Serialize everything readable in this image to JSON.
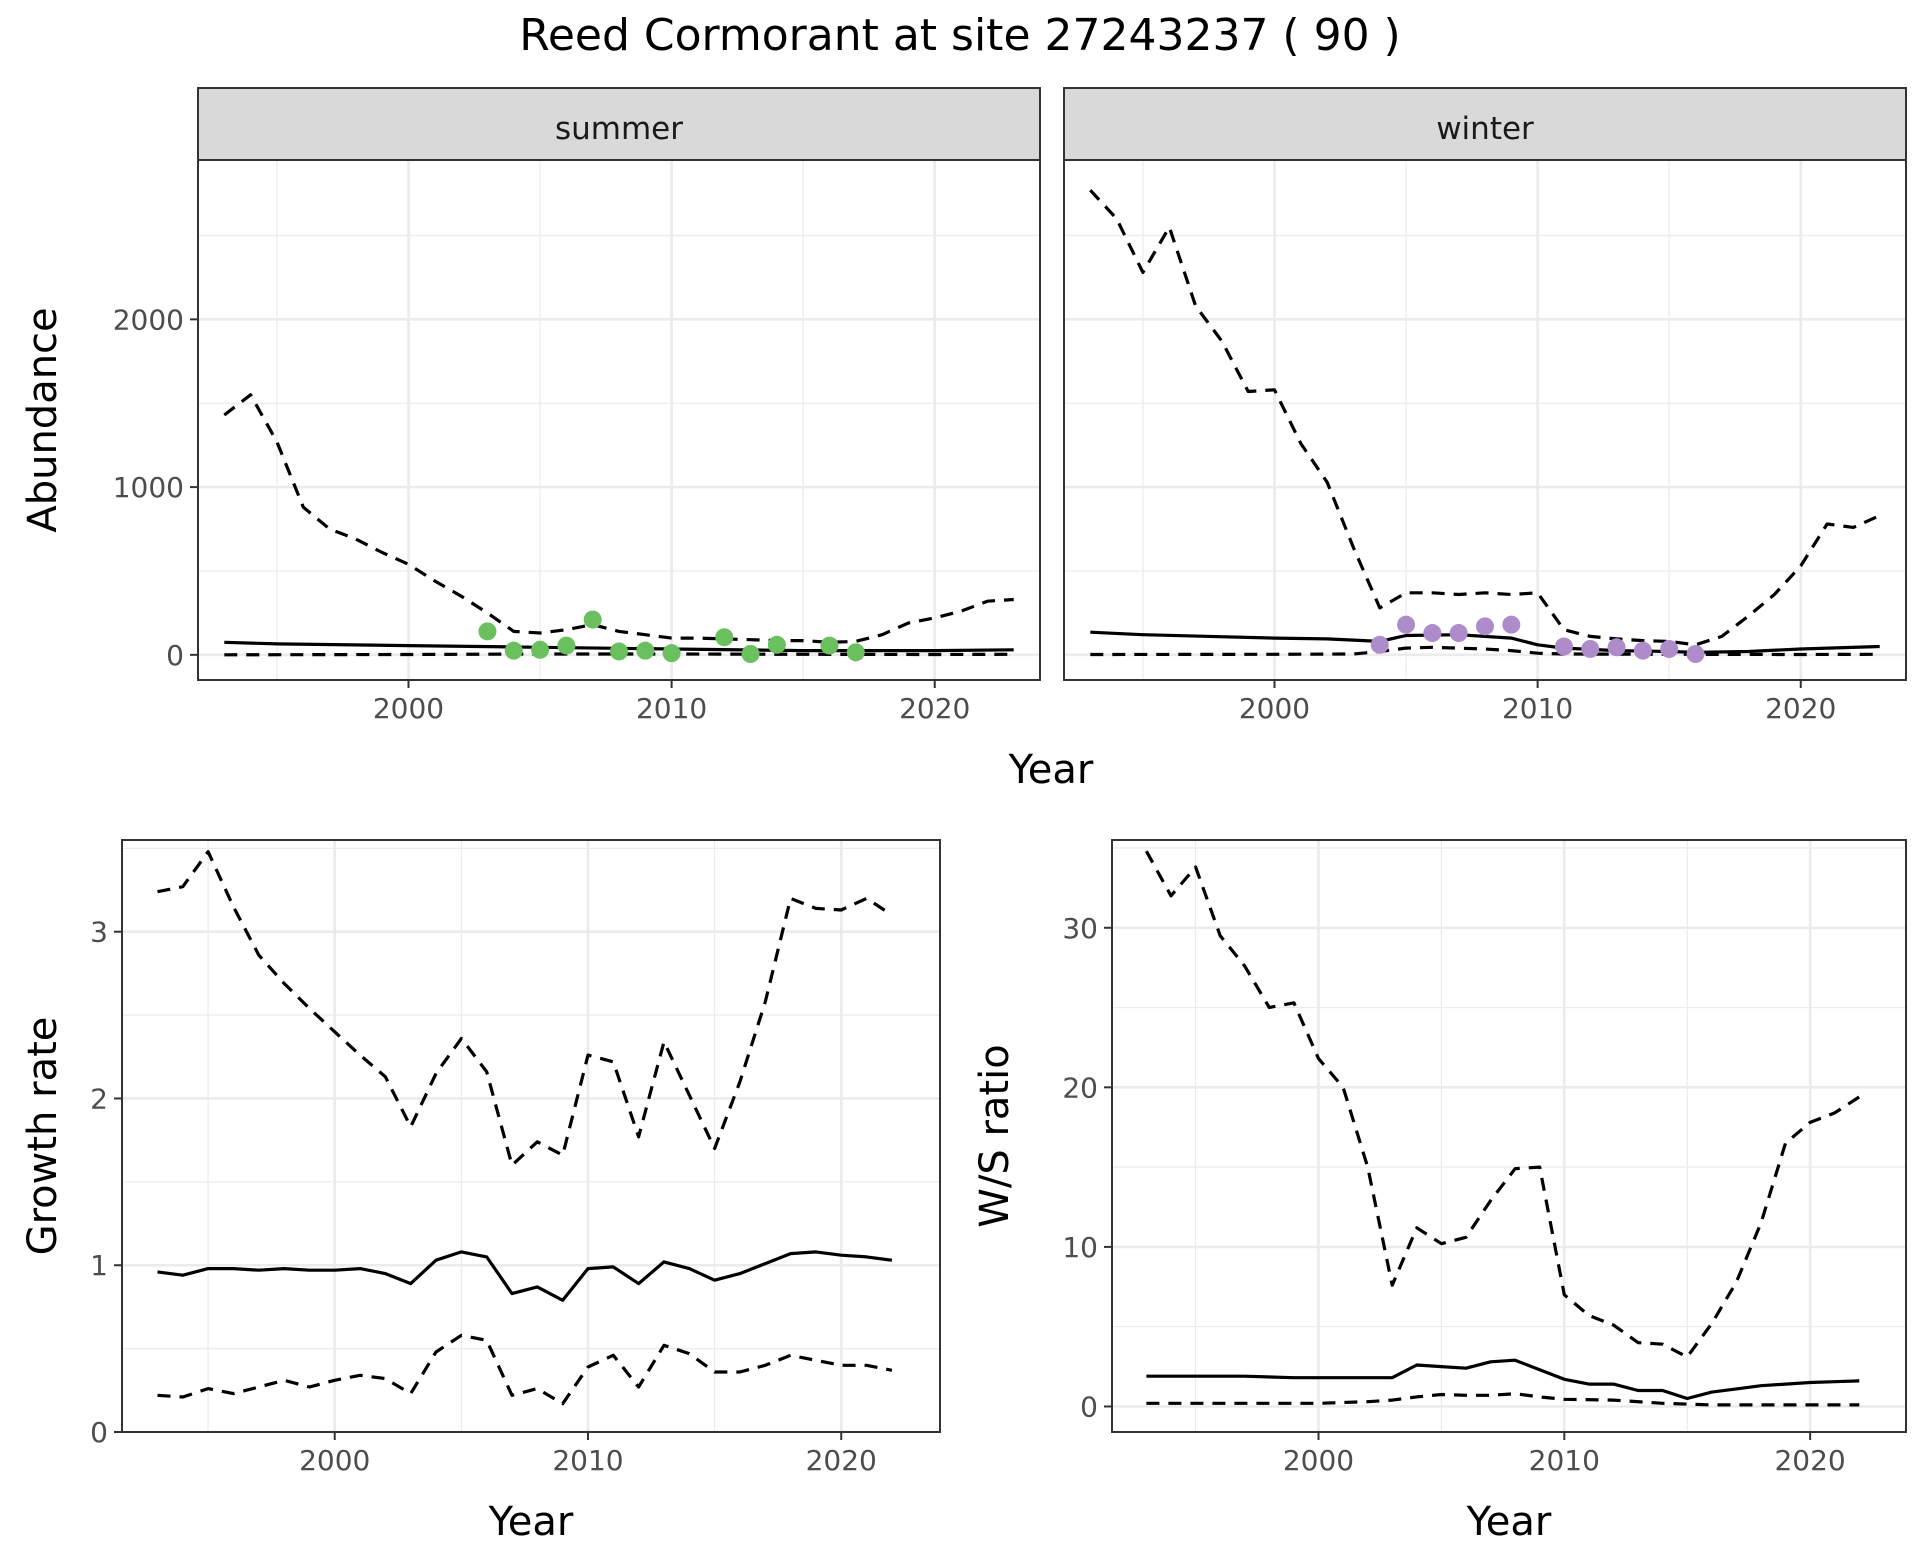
{
  "title": "Reed Cormorant at site 27243237 ( 90 )",
  "colors": {
    "summer_points": "#6abf5e",
    "winter_points": "#ae8cca",
    "line": "#000000",
    "strip_bg": "#d9d9d9",
    "grid": "#ebebeb"
  },
  "chart_data": [
    {
      "type": "line",
      "panel": "summer",
      "strip": "summer",
      "xlabel": "Year",
      "ylabel": "Abundance",
      "xlim": [
        1992,
        2024
      ],
      "ylim": [
        -150,
        2950
      ],
      "xticks": [
        2000,
        2010,
        2020
      ],
      "yticks": [
        0,
        1000,
        2000
      ],
      "grid": true,
      "series": [
        {
          "role": "estimate",
          "style": "solid",
          "x": [
            1993,
            1995,
            2000,
            2005,
            2010,
            2015,
            2020,
            2023
          ],
          "y": [
            75,
            65,
            55,
            45,
            35,
            25,
            25,
            30
          ]
        },
        {
          "role": "upper",
          "style": "dashed",
          "x": [
            1993,
            1994,
            1995,
            1996,
            1997,
            1998,
            1999,
            2000,
            2001,
            2002,
            2003,
            2004,
            2005,
            2006,
            2007,
            2008,
            2009,
            2010,
            2011,
            2012,
            2013,
            2014,
            2015,
            2016,
            2017,
            2018,
            2019,
            2020,
            2021,
            2022,
            2023
          ],
          "y": [
            1430,
            1550,
            1270,
            880,
            750,
            690,
            610,
            540,
            440,
            350,
            250,
            140,
            130,
            150,
            180,
            140,
            120,
            100,
            100,
            95,
            90,
            85,
            85,
            75,
            80,
            120,
            190,
            220,
            260,
            320,
            330
          ]
        },
        {
          "role": "lower",
          "style": "dashed",
          "x": [
            1993,
            2000,
            2005,
            2010,
            2015,
            2020,
            2023
          ],
          "y": [
            0,
            2,
            5,
            5,
            3,
            2,
            3
          ]
        },
        {
          "role": "observed",
          "style": "points",
          "x": [
            2003,
            2004,
            2005,
            2006,
            2007,
            2008,
            2009,
            2010,
            2012,
            2013,
            2014,
            2016,
            2017
          ],
          "y": [
            140,
            25,
            30,
            55,
            210,
            20,
            25,
            10,
            105,
            5,
            60,
            55,
            15
          ]
        }
      ]
    },
    {
      "type": "line",
      "panel": "winter",
      "strip": "winter",
      "xlabel": "Year",
      "ylabel": "Abundance",
      "xlim": [
        1992,
        2024
      ],
      "ylim": [
        -150,
        2950
      ],
      "xticks": [
        2000,
        2010,
        2020
      ],
      "yticks": [
        0,
        1000,
        2000
      ],
      "grid": true,
      "series": [
        {
          "role": "estimate",
          "style": "solid",
          "x": [
            1993,
            1995,
            2000,
            2002,
            2004,
            2005,
            2007,
            2009,
            2010,
            2011,
            2013,
            2015,
            2016,
            2018,
            2020,
            2023
          ],
          "y": [
            135,
            120,
            100,
            95,
            80,
            115,
            120,
            100,
            60,
            40,
            25,
            20,
            15,
            20,
            35,
            50
          ]
        },
        {
          "role": "upper",
          "style": "dashed",
          "x": [
            1993,
            1994,
            1995,
            1996,
            1997,
            1998,
            1999,
            2000,
            2001,
            2002,
            2003,
            2004,
            2005,
            2006,
            2007,
            2008,
            2009,
            2010,
            2011,
            2012,
            2013,
            2014,
            2015,
            2016,
            2017,
            2018,
            2019,
            2020,
            2021,
            2022,
            2023
          ],
          "y": [
            2770,
            2600,
            2280,
            2550,
            2080,
            1870,
            1570,
            1580,
            1260,
            1030,
            640,
            280,
            370,
            370,
            360,
            370,
            360,
            370,
            150,
            110,
            95,
            85,
            80,
            60,
            110,
            230,
            360,
            530,
            780,
            760,
            830
          ]
        },
        {
          "role": "lower",
          "style": "dashed",
          "x": [
            1993,
            2000,
            2003,
            2004,
            2005,
            2006,
            2008,
            2009,
            2010,
            2011,
            2015,
            2020,
            2023
          ],
          "y": [
            2,
            3,
            5,
            20,
            40,
            45,
            35,
            25,
            10,
            5,
            3,
            2,
            3
          ]
        },
        {
          "role": "observed",
          "style": "points",
          "x": [
            2004,
            2005,
            2006,
            2007,
            2008,
            2009,
            2011,
            2012,
            2013,
            2014,
            2015,
            2016
          ],
          "y": [
            60,
            180,
            130,
            130,
            170,
            180,
            50,
            35,
            45,
            25,
            35,
            5
          ]
        }
      ]
    },
    {
      "type": "line",
      "panel": "growth",
      "xlabel": "Year",
      "ylabel": "Growth rate",
      "xlim": [
        1991.6,
        2023.9
      ],
      "ylim": [
        0,
        3.55
      ],
      "xticks": [
        2000,
        2010,
        2020
      ],
      "yticks": [
        0,
        1,
        2,
        3
      ],
      "grid": true,
      "series": [
        {
          "role": "estimate",
          "style": "solid",
          "x": [
            1993,
            1994,
            1995,
            1996,
            1997,
            1998,
            1999,
            2000,
            2001,
            2002,
            2003,
            2004,
            2005,
            2006,
            2007,
            2008,
            2009,
            2010,
            2011,
            2012,
            2013,
            2014,
            2015,
            2016,
            2017,
            2018,
            2019,
            2020,
            2021,
            2022
          ],
          "y": [
            0.96,
            0.94,
            0.98,
            0.98,
            0.97,
            0.98,
            0.97,
            0.97,
            0.98,
            0.95,
            0.89,
            1.03,
            1.08,
            1.05,
            0.83,
            0.87,
            0.79,
            0.98,
            0.99,
            0.89,
            1.02,
            0.98,
            0.91,
            0.95,
            1.01,
            1.07,
            1.08,
            1.06,
            1.05,
            1.03
          ]
        },
        {
          "role": "upper",
          "style": "dashed",
          "x": [
            1993,
            1994,
            1995,
            1996,
            1997,
            1998,
            1999,
            2000,
            2001,
            2002,
            2003,
            2004,
            2005,
            2006,
            2007,
            2008,
            2009,
            2010,
            2011,
            2012,
            2013,
            2014,
            2015,
            2016,
            2017,
            2018,
            2019,
            2020,
            2021,
            2022
          ],
          "y": [
            3.24,
            3.27,
            3.48,
            3.15,
            2.86,
            2.69,
            2.54,
            2.4,
            2.26,
            2.13,
            1.83,
            2.15,
            2.36,
            2.16,
            1.6,
            1.74,
            1.66,
            2.26,
            2.22,
            1.77,
            2.34,
            2.02,
            1.7,
            2.1,
            2.58,
            3.2,
            3.14,
            3.13,
            3.2,
            3.1
          ]
        },
        {
          "role": "lower",
          "style": "dashed",
          "x": [
            1993,
            1994,
            1995,
            1996,
            1997,
            1998,
            1999,
            2000,
            2001,
            2002,
            2003,
            2004,
            2005,
            2006,
            2007,
            2008,
            2009,
            2010,
            2011,
            2012,
            2013,
            2014,
            2015,
            2016,
            2017,
            2018,
            2019,
            2020,
            2021,
            2022
          ],
          "y": [
            0.22,
            0.21,
            0.26,
            0.23,
            0.27,
            0.31,
            0.27,
            0.31,
            0.34,
            0.32,
            0.23,
            0.48,
            0.58,
            0.55,
            0.22,
            0.26,
            0.17,
            0.39,
            0.46,
            0.27,
            0.52,
            0.47,
            0.36,
            0.36,
            0.4,
            0.46,
            0.43,
            0.4,
            0.4,
            0.37
          ]
        }
      ]
    },
    {
      "type": "line",
      "panel": "ratio",
      "xlabel": "Year",
      "ylabel": "W/S ratio",
      "xlim": [
        1991.6,
        2023.9
      ],
      "ylim": [
        -1.6,
        35.5
      ],
      "xticks": [
        2000,
        2010,
        2020
      ],
      "yticks": [
        0,
        10,
        20,
        30
      ],
      "grid": true,
      "series": [
        {
          "role": "estimate",
          "style": "solid",
          "x": [
            1993,
            1995,
            1997,
            1999,
            2001,
            2003,
            2004,
            2005,
            2006,
            2007,
            2008,
            2009,
            2010,
            2011,
            2012,
            2013,
            2014,
            2015,
            2016,
            2017,
            2018,
            2019,
            2020,
            2021,
            2022
          ],
          "y": [
            1.9,
            1.9,
            1.9,
            1.8,
            1.8,
            1.8,
            2.6,
            2.5,
            2.4,
            2.8,
            2.9,
            2.3,
            1.7,
            1.4,
            1.4,
            1.0,
            1.0,
            0.5,
            0.9,
            1.1,
            1.3,
            1.4,
            1.5,
            1.55,
            1.6
          ]
        },
        {
          "role": "upper",
          "style": "dashed",
          "x": [
            1993,
            1994,
            1995,
            1996,
            1997,
            1998,
            1999,
            2000,
            2001,
            2002,
            2003,
            2004,
            2005,
            2006,
            2007,
            2008,
            2009,
            2010,
            2011,
            2012,
            2013,
            2014,
            2015,
            2016,
            2017,
            2018,
            2019,
            2020,
            2021,
            2022
          ],
          "y": [
            34.8,
            32.0,
            33.8,
            29.5,
            27.6,
            25.0,
            25.3,
            21.8,
            20.0,
            15.0,
            7.6,
            11.2,
            10.2,
            10.6,
            12.9,
            14.9,
            15.0,
            7.0,
            5.7,
            5.1,
            4.0,
            3.9,
            3.1,
            5.2,
            7.8,
            11.5,
            16.5,
            17.8,
            18.4,
            19.4
          ]
        },
        {
          "role": "lower",
          "style": "dashed",
          "x": [
            1993,
            2000,
            2002,
            2003,
            2004,
            2005,
            2006,
            2007,
            2008,
            2009,
            2010,
            2012,
            2014,
            2016,
            2020,
            2022
          ],
          "y": [
            0.2,
            0.2,
            0.3,
            0.4,
            0.6,
            0.75,
            0.7,
            0.7,
            0.8,
            0.6,
            0.45,
            0.4,
            0.2,
            0.1,
            0.1,
            0.1
          ]
        }
      ]
    }
  ]
}
